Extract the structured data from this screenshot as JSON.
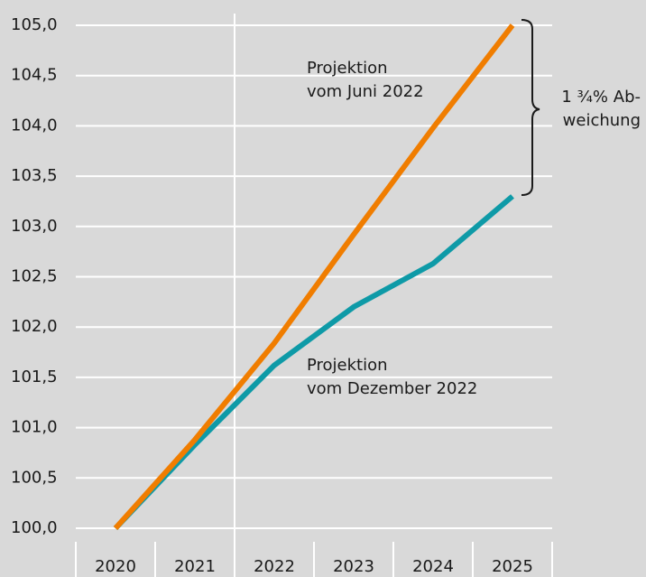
{
  "chart_data": {
    "type": "line",
    "categories": [
      "2020",
      "2021",
      "2022",
      "2023",
      "2024",
      "2025"
    ],
    "series": [
      {
        "label_lines": [
          "Projektion",
          "vom Juni 2022"
        ],
        "color": "#f07d00",
        "values": [
          100.0,
          100.88,
          101.84,
          102.92,
          103.98,
          105.0
        ]
      },
      {
        "label_lines": [
          "Projektion",
          "vom Dezember 2022"
        ],
        "color": "#0e9aa7",
        "values": [
          100.0,
          100.83,
          101.62,
          102.2,
          102.63,
          103.3
        ]
      }
    ],
    "annotation_lines": [
      "1 ¾% Ab-",
      "weichung"
    ],
    "ylim": [
      100.0,
      105.0
    ],
    "yticks": [
      {
        "value": 100.0,
        "label": "100,0"
      },
      {
        "value": 100.5,
        "label": "100,5"
      },
      {
        "value": 101.0,
        "label": "101,0"
      },
      {
        "value": 101.5,
        "label": "101,5"
      },
      {
        "value": 102.0,
        "label": "102,0"
      },
      {
        "value": 102.5,
        "label": "102,5"
      },
      {
        "value": 103.0,
        "label": "103,0"
      },
      {
        "value": 103.5,
        "label": "103,5"
      },
      {
        "value": 104.0,
        "label": "104,0"
      },
      {
        "value": 104.5,
        "label": "104,5"
      },
      {
        "value": 105.0,
        "label": "105,0"
      }
    ],
    "grid": true
  }
}
